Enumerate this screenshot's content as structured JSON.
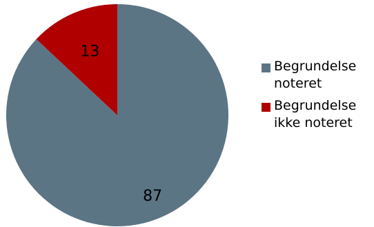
{
  "chart_data": {
    "type": "pie",
    "categories": [
      "Begrundelse noteret",
      "Begrundelse ikke noteret"
    ],
    "values": [
      87,
      13
    ],
    "colors": [
      "#5B7584",
      "#B00000"
    ],
    "legend_position": "right",
    "data_labels": [
      "87",
      "13"
    ]
  }
}
